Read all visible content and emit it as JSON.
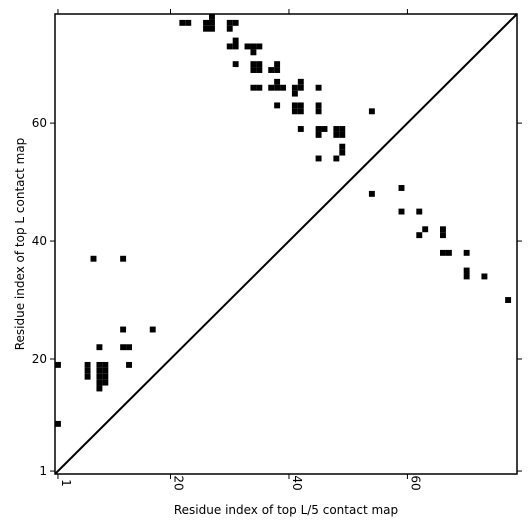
{
  "chart_data": {
    "type": "heatmap",
    "xlabel": "Residue index of top L/5 contact map",
    "ylabel": "Residue index of top L contact map",
    "xlim": [
      0.5,
      78.5
    ],
    "ylim": [
      0.5,
      78.5
    ],
    "x_ticks": [
      1,
      20,
      40,
      60
    ],
    "y_ticks": [
      1,
      20,
      40,
      60
    ],
    "diagonal": true,
    "lower_triangle_contacts": [
      [
        22,
        77
      ],
      [
        23,
        77
      ],
      [
        26,
        77
      ],
      [
        27,
        77
      ],
      [
        26,
        76
      ],
      [
        27,
        76
      ],
      [
        27,
        78
      ],
      [
        30,
        77
      ],
      [
        31,
        77
      ],
      [
        30,
        76
      ],
      [
        30,
        73
      ],
      [
        31,
        73
      ],
      [
        31,
        74
      ],
      [
        33,
        73
      ],
      [
        34,
        73
      ],
      [
        35,
        73
      ],
      [
        34,
        72
      ],
      [
        31,
        70
      ],
      [
        34,
        70
      ],
      [
        35,
        70
      ],
      [
        34,
        69
      ],
      [
        35,
        69
      ],
      [
        37,
        69
      ],
      [
        38,
        69
      ],
      [
        38,
        70
      ],
      [
        38,
        67
      ],
      [
        34,
        66
      ],
      [
        35,
        66
      ],
      [
        37,
        66
      ],
      [
        38,
        66
      ],
      [
        39,
        66
      ],
      [
        41,
        66
      ],
      [
        42,
        66
      ],
      [
        42,
        67
      ],
      [
        41,
        65
      ],
      [
        45,
        66
      ],
      [
        41,
        63
      ],
      [
        42,
        63
      ],
      [
        41,
        62
      ],
      [
        42,
        62
      ],
      [
        38,
        63
      ],
      [
        45,
        63
      ],
      [
        45,
        62
      ],
      [
        54,
        62
      ],
      [
        45,
        59
      ],
      [
        46,
        59
      ],
      [
        45,
        58
      ],
      [
        42,
        59
      ],
      [
        48,
        59
      ],
      [
        49,
        59
      ],
      [
        48,
        58
      ],
      [
        49,
        58
      ],
      [
        49,
        56
      ],
      [
        49,
        55
      ],
      [
        48,
        54
      ],
      [
        45,
        54
      ]
    ],
    "upper_triangle_contacts": [
      [
        1,
        19
      ],
      [
        1,
        9
      ],
      [
        6,
        19
      ],
      [
        6,
        18
      ],
      [
        6,
        17
      ],
      [
        8,
        19
      ],
      [
        9,
        19
      ],
      [
        8,
        18
      ],
      [
        9,
        18
      ],
      [
        8,
        17
      ],
      [
        9,
        17
      ],
      [
        8,
        16
      ],
      [
        9,
        16
      ],
      [
        8,
        15
      ],
      [
        8,
        22
      ],
      [
        7,
        37
      ],
      [
        12,
        37
      ],
      [
        12,
        25
      ],
      [
        17,
        25
      ],
      [
        12,
        22
      ],
      [
        13,
        22
      ],
      [
        13,
        19
      ],
      [
        54,
        48
      ],
      [
        59,
        49
      ],
      [
        59,
        45
      ],
      [
        62,
        45
      ],
      [
        62,
        41
      ],
      [
        63,
        42
      ],
      [
        66,
        42
      ],
      [
        66,
        41
      ],
      [
        66,
        38
      ],
      [
        67,
        38
      ],
      [
        70,
        38
      ],
      [
        70,
        35
      ],
      [
        70,
        34
      ],
      [
        73,
        34
      ],
      [
        77,
        30
      ]
    ]
  }
}
